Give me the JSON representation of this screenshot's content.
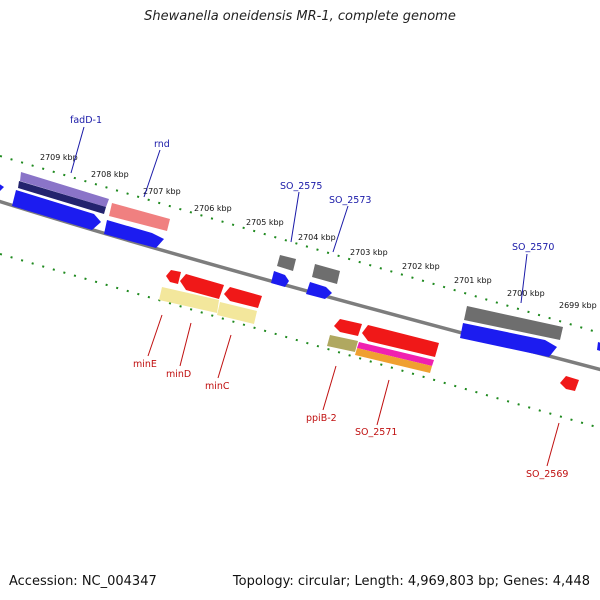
{
  "title": "Shewanella oneidensis MR-1, complete genome",
  "footer": {
    "accession": "Accession: NC_004347",
    "summary": "Topology: circular; Length: 4,969,803 bp; Genes: 4,448"
  },
  "colors": {
    "backbone": "#7a7a7a",
    "tick_major": "#1f8a1f",
    "forward_label": "#1a1aa8",
    "reverse_label": "#c01010",
    "blue_cds": "#1c1cf0",
    "red_cds": "#f01818",
    "gray_gene": "#6e6e6e",
    "navy_gene": "#20206e",
    "purple_gene": "#8870c8",
    "pink_gene": "#f08080",
    "yellow_gene": "#f2e6a0",
    "olive_gene": "#a8a060",
    "magenta_gene": "#f020b0",
    "orange_gene": "#f0a030"
  },
  "kbp_labels": [
    "2709 kbp",
    "2708 kbp",
    "2707 kbp",
    "2706 kbp",
    "2705 kbp",
    "2704 kbp",
    "2703 kbp",
    "2702 kbp",
    "2701 kbp",
    "2700 kbp",
    "2699 kbp"
  ],
  "forward_gene_labels": [
    "fadD-1",
    "rnd",
    "SO_2575",
    "SO_2573",
    "SO_2570"
  ],
  "reverse_gene_labels": [
    "minE",
    "minD",
    "minC",
    "ppiB-2",
    "SO_2571",
    "SO_2569"
  ]
}
